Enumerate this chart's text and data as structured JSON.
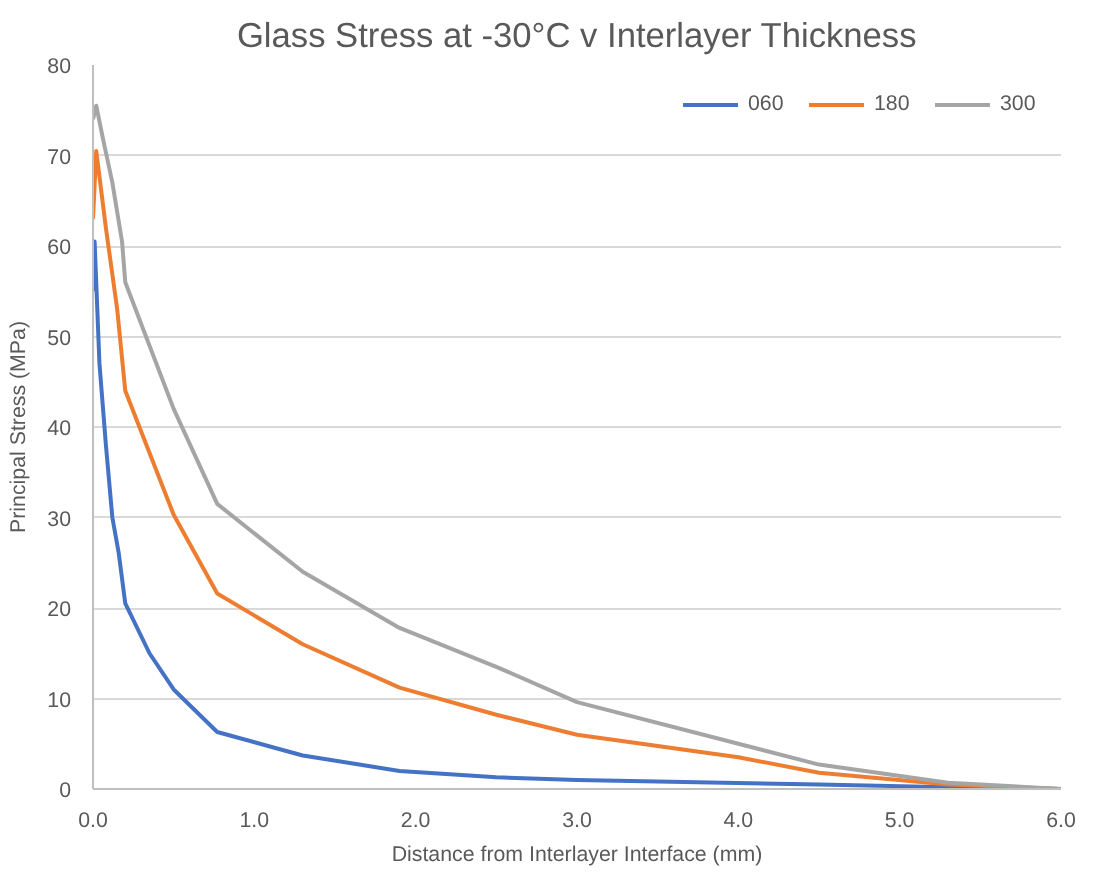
{
  "chart_data": {
    "type": "line",
    "title": "Glass Stress at -30°C v Interlayer Thickness",
    "xlabel": "Distance from Interlayer Interface (mm)",
    "ylabel": "Principal Stress (MPa)",
    "xlim": [
      0,
      6
    ],
    "xticks": [
      {
        "value": 0,
        "label": "0.0"
      },
      {
        "value": 1,
        "label": "1.0"
      },
      {
        "value": 2,
        "label": "2.0"
      },
      {
        "value": 3,
        "label": "3.0"
      },
      {
        "value": 4,
        "label": "4.0"
      },
      {
        "value": 5,
        "label": "5.0"
      },
      {
        "value": 6,
        "label": "6.0"
      }
    ],
    "ylim": [
      0,
      80
    ],
    "yticks": [
      0,
      10,
      20,
      30,
      40,
      50,
      60,
      70,
      80
    ],
    "grid": "y",
    "legend": "top right",
    "marker": "none",
    "line_style": "solid",
    "series": [
      {
        "name": "060",
        "color": "#4472c4",
        "x": [
          0,
          0.01,
          0.04,
          0.08,
          0.12,
          0.16,
          0.2,
          0.35,
          0.5,
          0.77,
          1.3,
          1.9,
          2.5,
          3.0,
          4.5,
          5.3,
          6.0
        ],
        "values": [
          55,
          60.5,
          47,
          38,
          30,
          26,
          20.5,
          15,
          11,
          6.3,
          3.7,
          2,
          1.3,
          1.0,
          0.5,
          0.2,
          0
        ]
      },
      {
        "name": "180",
        "color": "#ed7d31",
        "x": [
          0,
          0.02,
          0.08,
          0.15,
          0.2,
          0.5,
          0.77,
          1.3,
          1.9,
          2.5,
          3.0,
          4.0,
          4.5,
          5.3,
          6.0
        ],
        "values": [
          63,
          70.5,
          62,
          53,
          44,
          30.3,
          21.6,
          16,
          11.2,
          8.2,
          6,
          3.5,
          1.8,
          0.5,
          0
        ]
      },
      {
        "name": "300",
        "color": "#a5a5a5",
        "x": [
          0,
          0.02,
          0.06,
          0.12,
          0.18,
          0.2,
          0.5,
          0.77,
          1.3,
          1.9,
          2.5,
          3.0,
          4.0,
          4.5,
          5.3,
          6.0
        ],
        "values": [
          74,
          75.5,
          72,
          67,
          60.5,
          56,
          42,
          31.5,
          24,
          17.8,
          13.5,
          9.6,
          5,
          2.7,
          0.7,
          0
        ]
      }
    ]
  }
}
